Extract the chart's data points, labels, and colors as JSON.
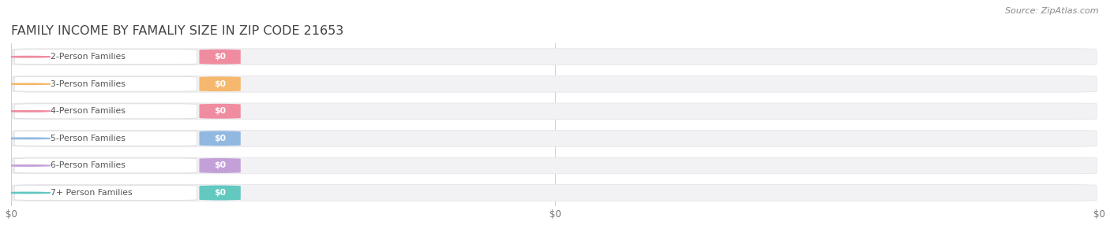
{
  "title": "FAMILY INCOME BY FAMALIY SIZE IN ZIP CODE 21653",
  "source_text": "Source: ZipAtlas.com",
  "categories": [
    "2-Person Families",
    "3-Person Families",
    "4-Person Families",
    "5-Person Families",
    "6-Person Families",
    "7+ Person Families"
  ],
  "values": [
    0,
    0,
    0,
    0,
    0,
    0
  ],
  "bar_colors": [
    "#f08ca0",
    "#f5b86e",
    "#f08ca0",
    "#90b8e0",
    "#c4a0d8",
    "#62c8c0"
  ],
  "background_color": "#ffffff",
  "bar_bg_color": "#f2f2f4",
  "bar_bg_edge_color": "#e2e2e8",
  "label_box_color": "#ffffff",
  "title_fontsize": 11.5,
  "source_fontsize": 8,
  "label_fontsize": 7.8,
  "val_fontsize": 7.8,
  "tick_fontsize": 8.5,
  "xtick_labels": [
    "$0",
    "$0",
    "$0"
  ],
  "xtick_positions": [
    0.0,
    0.5,
    1.0
  ]
}
